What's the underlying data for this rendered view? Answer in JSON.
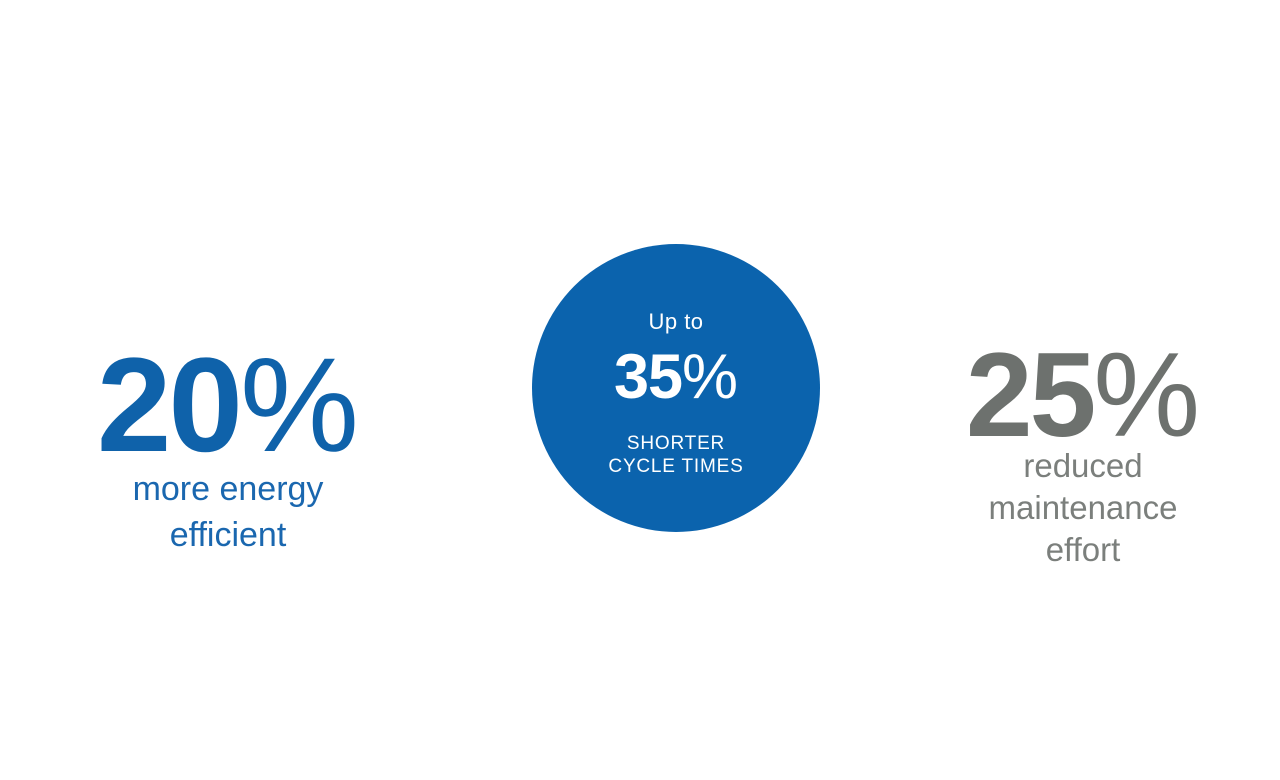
{
  "colors": {
    "background": "#ffffff",
    "primary_blue": "#0f62aa",
    "blue_label": "#1a67af",
    "circle_blue": "#0b63ad",
    "circle_text": "#ffffff",
    "gray_number": "#6d716e",
    "gray_label": "#7b7f7c"
  },
  "stats": {
    "energy": {
      "value": "20",
      "unit": "%",
      "label_lines": [
        "more energy",
        "efficient"
      ]
    },
    "cycle": {
      "prefix": "Up to",
      "value": "35",
      "unit": "%",
      "label_lines": [
        "SHORTER",
        "CYCLE TIMES"
      ]
    },
    "maintenance": {
      "value": "25",
      "unit": "%",
      "label_lines": [
        "reduced",
        "maintenance",
        "effort"
      ]
    }
  }
}
